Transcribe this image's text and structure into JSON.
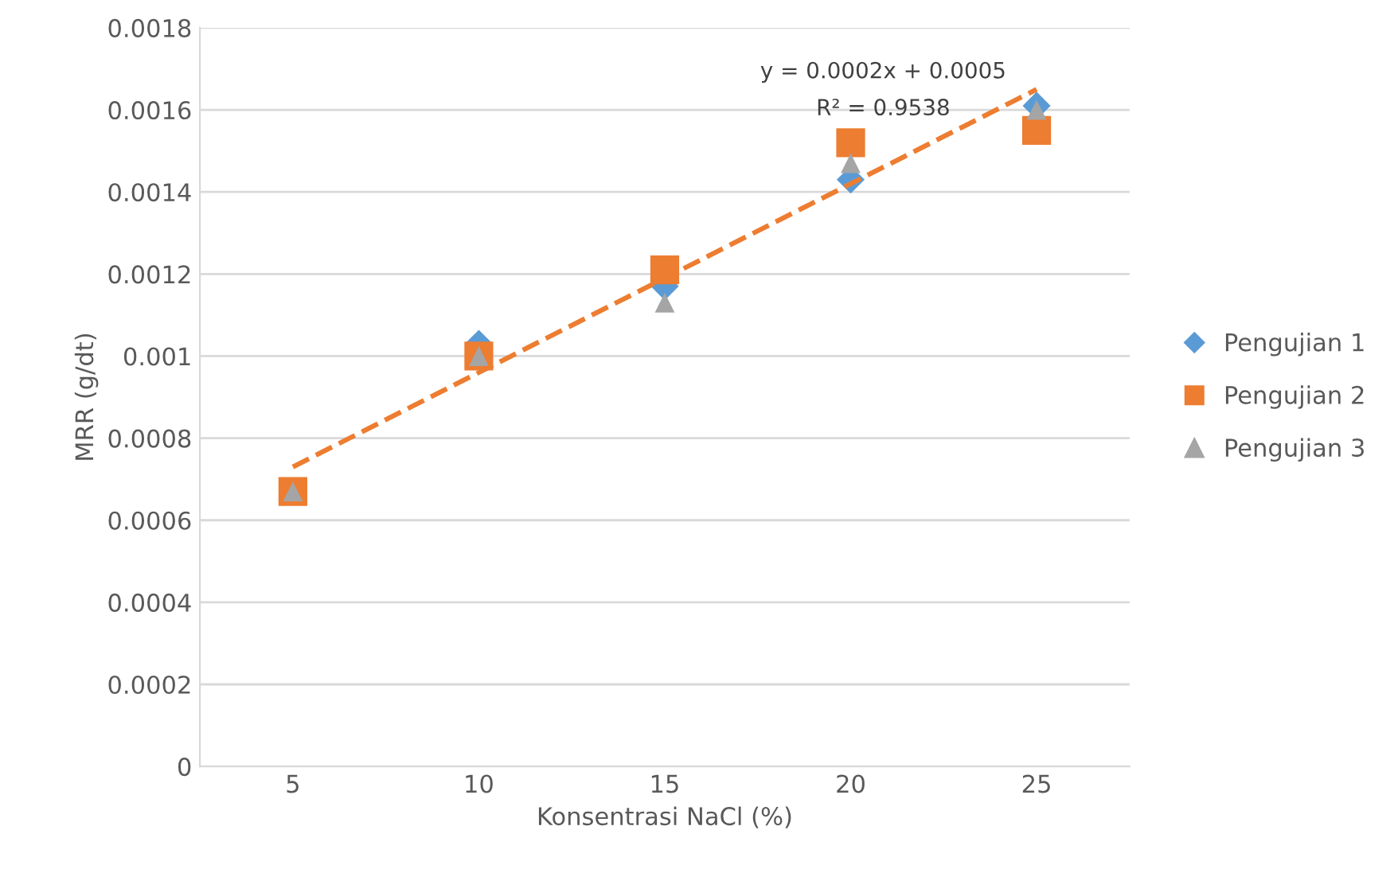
{
  "chart_data": {
    "type": "scatter",
    "xlabel": "Konsentrasi NaCl (%)",
    "ylabel": "MRR (g/dt)",
    "categories": [
      "5",
      "10",
      "15",
      "20",
      "25"
    ],
    "series": [
      {
        "name": "Pengujian 1",
        "color": "#5b9bd5",
        "marker": "diamond",
        "values": [
          null,
          0.00103,
          0.00117,
          0.00143,
          0.00161
        ]
      },
      {
        "name": "Pengujian 2",
        "color": "#ed7d31",
        "marker": "square",
        "values": [
          0.00067,
          0.001,
          0.00121,
          0.00152,
          0.00155
        ]
      },
      {
        "name": "Pengujian 3",
        "color": "#a5a5a5",
        "marker": "triangle",
        "values": [
          0.00067,
          0.001,
          0.00113,
          0.00147,
          0.0016
        ]
      },
      {
        "type": "line",
        "color": "#ed7d31",
        "line_style": "dashed",
        "marker": "none",
        "values": [
          0.00073,
          0.00096,
          0.00119,
          0.00142,
          0.00165
        ]
      }
    ],
    "ylim": [
      0,
      0.0018
    ],
    "yticks": [
      0,
      0.0002,
      0.0004,
      0.0006,
      0.0008,
      0.001,
      0.0012,
      0.0014,
      0.0016,
      0.0018
    ],
    "grid": "y",
    "legend": "right",
    "annotations": [
      "y = 0.0002x + 0.0005",
      "R² = 0.9538"
    ]
  }
}
